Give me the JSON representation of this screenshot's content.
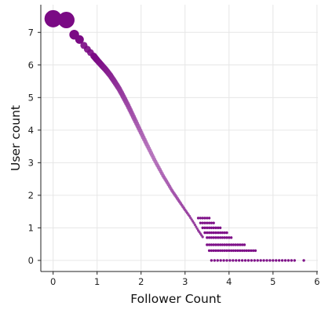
{
  "chart_data": {
    "type": "scatter",
    "xlabel": "Follower Count",
    "ylabel": "User count",
    "xlim": [
      -0.28,
      6.02
    ],
    "ylim": [
      -0.34,
      7.85
    ],
    "xticks": [
      "0",
      "1",
      "2",
      "3",
      "4",
      "5",
      "6"
    ],
    "yticks": [
      "0",
      "1",
      "2",
      "3",
      "4",
      "5",
      "6",
      "7"
    ],
    "grid": true,
    "legend": "none",
    "colors": {
      "dark": "#7a0a84",
      "light": "#c58fcb"
    },
    "curve_points": [
      [
        0.0,
        7.42
      ],
      [
        0.3,
        7.38
      ],
      [
        0.48,
        6.93
      ],
      [
        0.6,
        6.78
      ],
      [
        0.7,
        6.6
      ],
      [
        0.78,
        6.48
      ],
      [
        0.85,
        6.38
      ],
      [
        0.92,
        6.28
      ],
      [
        1.0,
        6.15
      ],
      [
        1.1,
        6.0
      ],
      [
        1.2,
        5.85
      ],
      [
        1.3,
        5.68
      ],
      [
        1.4,
        5.48
      ],
      [
        1.5,
        5.27
      ],
      [
        1.6,
        5.02
      ],
      [
        1.7,
        4.76
      ],
      [
        1.8,
        4.48
      ],
      [
        1.9,
        4.2
      ],
      [
        2.0,
        3.92
      ],
      [
        2.1,
        3.64
      ],
      [
        2.2,
        3.37
      ],
      [
        2.3,
        3.1
      ],
      [
        2.4,
        2.85
      ],
      [
        2.5,
        2.6
      ],
      [
        2.6,
        2.38
      ],
      [
        2.7,
        2.15
      ],
      [
        2.8,
        1.95
      ],
      [
        2.9,
        1.75
      ],
      [
        3.0,
        1.55
      ],
      [
        3.1,
        1.36
      ],
      [
        3.2,
        1.15
      ],
      [
        3.3,
        0.92
      ],
      [
        3.4,
        0.72
      ]
    ],
    "tail_bands": [
      {
        "y": 1.3,
        "x_min": 3.3,
        "x_max": 3.55
      },
      {
        "y": 1.15,
        "x_min": 3.35,
        "x_max": 3.65
      },
      {
        "y": 1.0,
        "x_min": 3.4,
        "x_max": 3.8
      },
      {
        "y": 0.85,
        "x_min": 3.45,
        "x_max": 3.95
      },
      {
        "y": 0.7,
        "x_min": 3.5,
        "x_max": 4.05
      },
      {
        "y": 0.48,
        "x_min": 3.5,
        "x_max": 4.35
      },
      {
        "y": 0.3,
        "x_min": 3.55,
        "x_max": 4.6
      },
      {
        "y": 0.0,
        "x_min": 3.6,
        "x_max": 5.5
      }
    ],
    "tail_outliers": [
      [
        5.7,
        0.0
      ]
    ]
  }
}
